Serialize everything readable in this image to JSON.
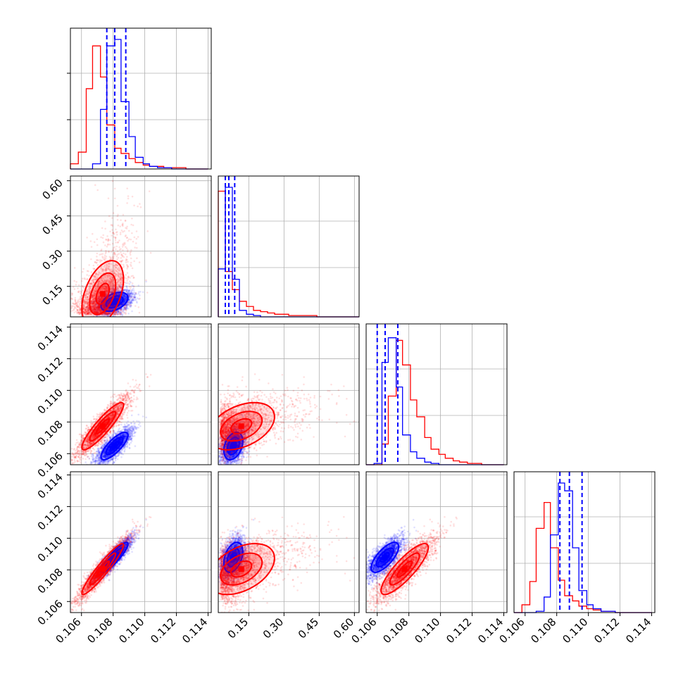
{
  "chart_data": {
    "type": "scatter",
    "subtype": "corner-plot",
    "grid": true,
    "legend": "none",
    "colors": {
      "series_a": "#0000ff",
      "series_b": "#ff0000"
    },
    "parameters": [
      {
        "range": [
          0.1053,
          0.1142
        ],
        "ticks": [
          0.106,
          0.108,
          0.11,
          0.112,
          0.114
        ],
        "tick_labels": [
          "0.106",
          "0.108",
          "0.110",
          "0.112",
          "0.114"
        ]
      },
      {
        "range": [
          0.02,
          0.62
        ],
        "ticks": [
          0.15,
          0.3,
          0.45,
          0.6
        ],
        "tick_labels": [
          "0.15",
          "0.30",
          "0.45",
          "0.60"
        ]
      },
      {
        "range": [
          0.1053,
          0.1142
        ],
        "ticks": [
          0.106,
          0.108,
          0.11,
          0.112,
          0.114
        ],
        "tick_labels": [
          "0.106",
          "0.108",
          "0.110",
          "0.112",
          "0.114"
        ]
      },
      {
        "range": [
          0.1053,
          0.1142
        ],
        "ticks": [
          0.106,
          0.108,
          0.11,
          0.112,
          0.114
        ],
        "tick_labels": [
          "0.106",
          "0.108",
          "0.110",
          "0.112",
          "0.114"
        ]
      }
    ],
    "series": [
      {
        "color": "#0000ff",
        "mean": [
          0.1081,
          0.075,
          0.1065,
          0.1088
        ],
        "sd": [
          0.00055,
          0.025,
          0.00055,
          0.0006
        ],
        "quantile_lines": [
          [
            0.1076,
            0.1081,
            0.1088
          ],
          [
            0.05,
            0.065,
            0.09
          ],
          [
            0.106,
            0.1065,
            0.1073
          ],
          [
            0.1082,
            0.1088,
            0.1096
          ]
        ]
      },
      {
        "color": "#ff0000",
        "mean": [
          0.1067,
          0.035,
          0.1071,
          0.1073
        ],
        "sd": [
          0.0009,
          0.07,
          0.001,
          0.0011
        ]
      }
    ],
    "histograms": [
      {
        "bin_edges": [
          0.1053,
          0.1058,
          0.1063,
          0.1067,
          0.1072,
          0.1076,
          0.1081,
          0.1085,
          0.109,
          0.1094,
          0.1099,
          0.1103,
          0.1108,
          0.1112,
          0.1117,
          0.1121,
          0.1126,
          0.113,
          0.1135,
          0.114
        ],
        "series_a": [
          0,
          0,
          0,
          0.04,
          0.46,
          0.95,
          1.0,
          0.52,
          0.25,
          0.09,
          0.04,
          0.02,
          0.01,
          0.01,
          0,
          0,
          0,
          0,
          0
        ],
        "series_b": [
          0.04,
          0.13,
          0.62,
          0.95,
          0.71,
          0.34,
          0.16,
          0.12,
          0.08,
          0.05,
          0.03,
          0.02,
          0.02,
          0.01,
          0.01,
          0.01,
          0,
          0,
          0
        ]
      },
      {
        "bin_edges": [
          0.02,
          0.05,
          0.08,
          0.11,
          0.14,
          0.17,
          0.2,
          0.23,
          0.26,
          0.29,
          0.32,
          0.35,
          0.38,
          0.41,
          0.44,
          0.47,
          0.5,
          0.53,
          0.56,
          0.59,
          0.62
        ],
        "series_a": [
          0.37,
          1.0,
          0.29,
          0.05,
          0.02,
          0.01,
          0,
          0,
          0,
          0,
          0,
          0,
          0,
          0,
          0,
          0,
          0,
          0,
          0,
          0
        ],
        "series_b": [
          0.97,
          0.35,
          0.21,
          0.12,
          0.08,
          0.05,
          0.04,
          0.03,
          0.02,
          0.02,
          0.01,
          0.01,
          0.01,
          0.01,
          0,
          0,
          0,
          0,
          0,
          0
        ]
      },
      {
        "bin_edges": [
          0.1053,
          0.1058,
          0.1063,
          0.1067,
          0.1072,
          0.1076,
          0.1081,
          0.1085,
          0.109,
          0.1094,
          0.1099,
          0.1103,
          0.1108,
          0.1112,
          0.1117,
          0.1121,
          0.1126,
          0.113,
          0.1135,
          0.114
        ],
        "series_a": [
          0,
          0.01,
          0.79,
          0.98,
          0.6,
          0.23,
          0.1,
          0.05,
          0.02,
          0.01,
          0,
          0,
          0,
          0,
          0,
          0,
          0,
          0,
          0
        ],
        "series_b": [
          0,
          0,
          0.16,
          0.53,
          0.96,
          0.77,
          0.5,
          0.37,
          0.21,
          0.12,
          0.08,
          0.05,
          0.03,
          0.02,
          0.01,
          0.01,
          0,
          0,
          0
        ]
      },
      {
        "bin_edges": [
          0.1053,
          0.1058,
          0.1063,
          0.1067,
          0.1072,
          0.1076,
          0.1081,
          0.1085,
          0.109,
          0.1094,
          0.1099,
          0.1103,
          0.1108,
          0.1112,
          0.1117,
          0.1121,
          0.1126,
          0.113,
          0.1135,
          0.114
        ],
        "series_a": [
          0,
          0,
          0,
          0.01,
          0.12,
          0.6,
          1.0,
          0.94,
          0.5,
          0.17,
          0.06,
          0.03,
          0.01,
          0.01,
          0,
          0,
          0,
          0,
          0
        ],
        "series_b": [
          0,
          0.06,
          0.24,
          0.65,
          0.85,
          0.5,
          0.25,
          0.13,
          0.09,
          0.05,
          0.03,
          0.02,
          0.01,
          0.01,
          0,
          0,
          0,
          0,
          0
        ]
      }
    ]
  }
}
